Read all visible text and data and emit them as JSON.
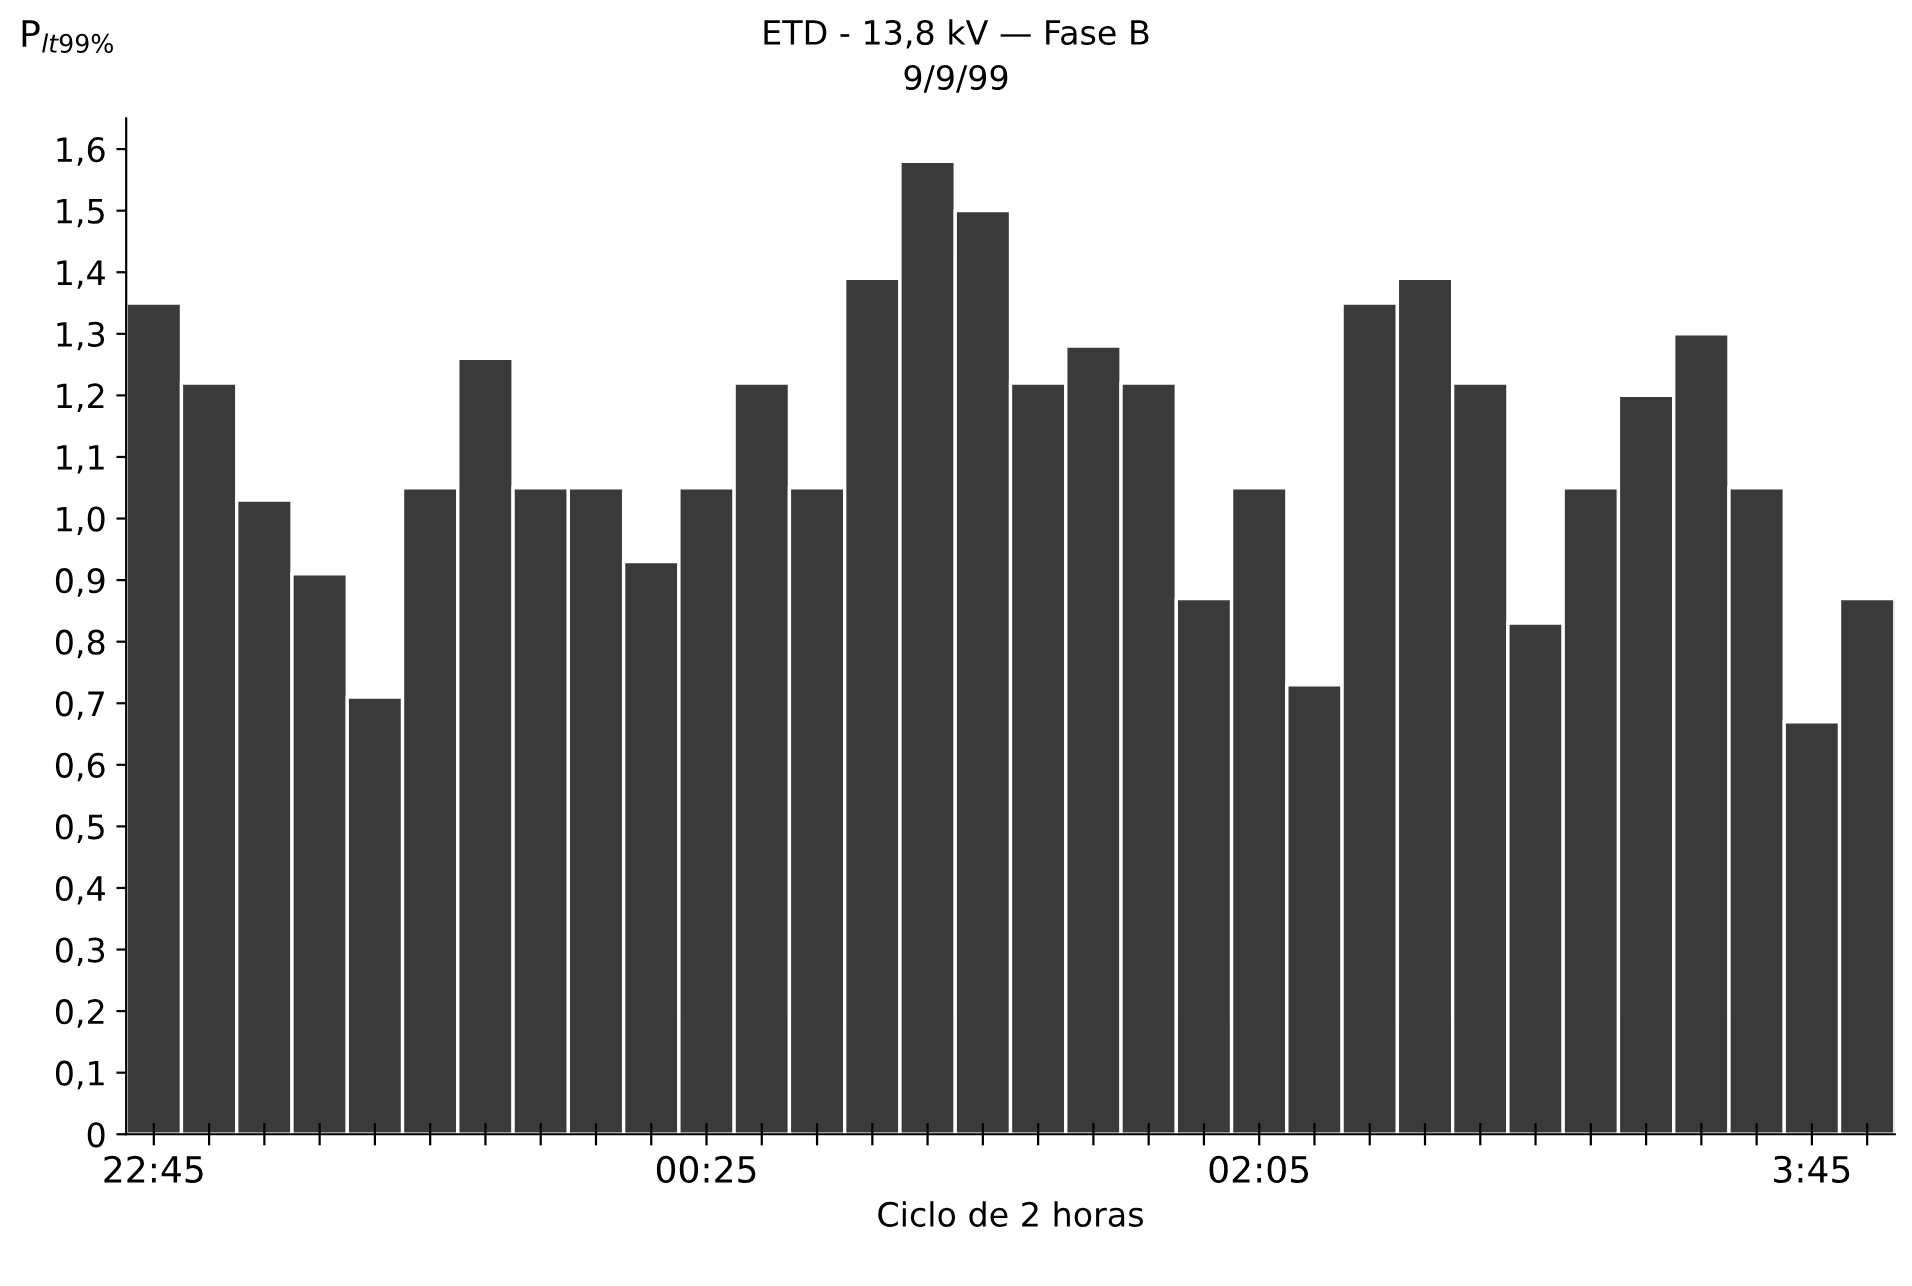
{
  "chart_data": {
    "type": "bar",
    "title": "ETD - 13,8 kV — Fase B",
    "subtitle": "9/9/99",
    "xlabel": "Ciclo de 2 horas",
    "ylabel": "P$_{lt99%}$",
    "categories": [
      "22:45",
      null,
      null,
      null,
      null,
      null,
      null,
      null,
      null,
      null,
      "00:25",
      null,
      null,
      null,
      null,
      null,
      null,
      null,
      null,
      null,
      "02:05",
      null,
      null,
      null,
      null,
      null,
      null,
      null,
      null,
      null,
      "3:45",
      null
    ],
    "values": [
      1.35,
      1.22,
      1.03,
      0.91,
      0.71,
      1.05,
      1.26,
      1.05,
      1.05,
      0.93,
      1.05,
      1.22,
      1.05,
      1.39,
      1.58,
      1.5,
      1.22,
      1.28,
      1.22,
      0.87,
      1.05,
      0.73,
      1.35,
      1.39,
      1.22,
      0.83,
      1.05,
      1.2,
      1.3,
      1.05,
      0.67,
      0.87
    ],
    "color": "#3a3a3a",
    "ylim": [
      0,
      1.65
    ],
    "yticks": [
      0,
      {
        "value": 0.1,
        "label": "0,1"
      },
      {
        "value": 0.2,
        "label": "0,2"
      },
      {
        "value": 0.3,
        "label": "0,3"
      },
      {
        "value": 0.4,
        "label": "0,4"
      },
      {
        "value": 0.5,
        "label": "0,5"
      },
      {
        "value": 0.6,
        "label": "0,6"
      },
      {
        "value": 0.7,
        "label": "0,7"
      },
      {
        "value": 0.8,
        "label": "0,8"
      },
      {
        "value": 0.9,
        "label": "0,9"
      },
      {
        "value": 1.0,
        "label": "1,0"
      },
      {
        "value": 1.1,
        "label": "1,1"
      },
      {
        "value": 1.2,
        "label": "1,2"
      },
      {
        "value": 1.3,
        "label": "1,3"
      },
      {
        "value": 1.4,
        "label": "1,4"
      },
      {
        "value": 1.5,
        "label": "1,5"
      },
      {
        "value": 1.6,
        "label": "1,6"
      }
    ],
    "grid": false,
    "legend": false
  }
}
